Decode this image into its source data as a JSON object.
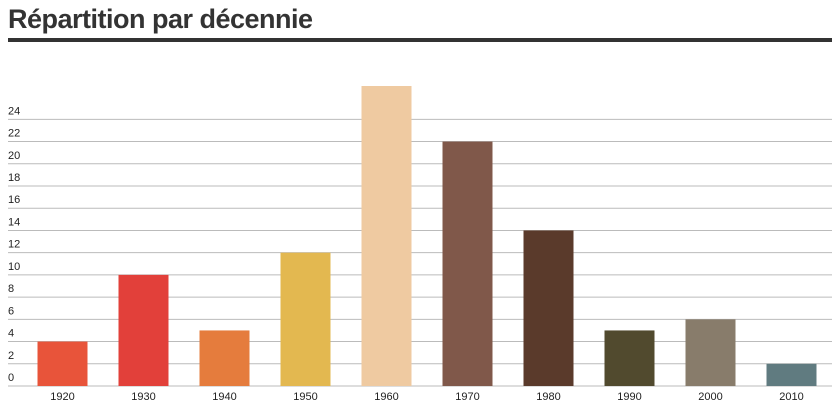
{
  "chart_data": {
    "type": "bar",
    "title": "Répartition par décennie",
    "categories": [
      "1920",
      "1930",
      "1940",
      "1950",
      "1960",
      "1970",
      "1980",
      "1990",
      "2000",
      "2010"
    ],
    "values": [
      4,
      10,
      5,
      12,
      27,
      22,
      14,
      5,
      6,
      2
    ],
    "colors": [
      "#e8543a",
      "#e2403a",
      "#e57c3d",
      "#e3b850",
      "#efcaa1",
      "#80584a",
      "#5a3a2b",
      "#514a2e",
      "#887c6b",
      "#607b80"
    ],
    "ylim": [
      0,
      27
    ],
    "yticks": [
      0,
      2,
      4,
      6,
      8,
      10,
      12,
      14,
      16,
      18,
      20,
      22,
      24
    ],
    "grid": true
  }
}
